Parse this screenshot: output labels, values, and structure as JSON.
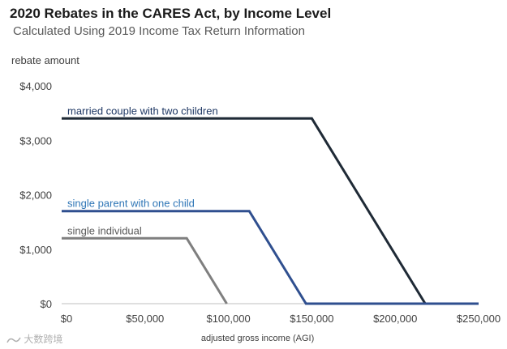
{
  "chart_data": {
    "type": "line",
    "title": "2020 Rebates in the CARES Act, by Income Level",
    "subtitle": "Calculated Using 2019 Income Tax Return Information",
    "ylabel": "rebate amount",
    "xlabel": "adjusted gross income (AGI)",
    "xlim": [
      0,
      250000
    ],
    "ylim": [
      0,
      4000
    ],
    "x_ticks": [
      0,
      50000,
      100000,
      150000,
      200000,
      250000
    ],
    "x_tick_labels": [
      "$0",
      "$50,000",
      "$100,000",
      "$150,000",
      "$200,000",
      "$250,000"
    ],
    "y_ticks": [
      0,
      1000,
      2000,
      3000,
      4000
    ],
    "y_tick_labels": [
      "$0",
      "$1,000",
      "$2,000",
      "$3,000",
      "$4,000"
    ],
    "grid": false,
    "series": [
      {
        "name": "married couple with two children",
        "color": "#1f2a36",
        "label_color": "#1f3864",
        "x": [
          0,
          150000,
          218000,
          250000
        ],
        "y": [
          3400,
          3400,
          0,
          0
        ]
      },
      {
        "name": "single parent with one child",
        "color": "#2f4f8f",
        "label_color": "#2e75b6",
        "x": [
          0,
          112500,
          146500,
          250000
        ],
        "y": [
          1700,
          1700,
          0,
          0
        ]
      },
      {
        "name": "single individual",
        "color": "#7f7f7f",
        "label_color": "#595959",
        "x": [
          0,
          75000,
          99000
        ],
        "y": [
          1200,
          1200,
          0
        ]
      }
    ]
  },
  "watermark": {
    "text": "大数跨境",
    "icon": "brand-logo-icon"
  }
}
